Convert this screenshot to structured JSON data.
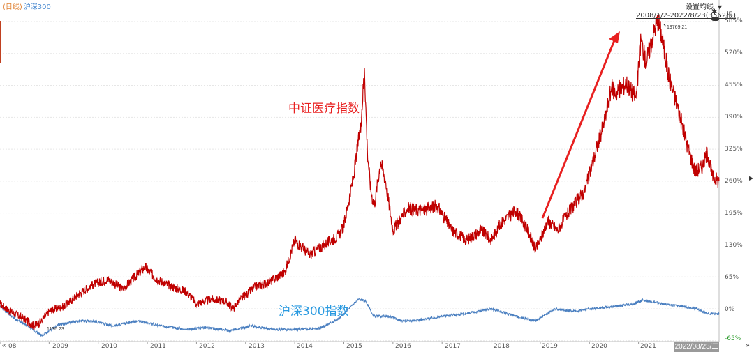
{
  "legend": {
    "item1": "(日线)",
    "item2": "沪深300"
  },
  "controls": {
    "ma_setting": "设置均线",
    "range": "2008/1/2-2022/8/23(3562根)",
    "cursor_date": "2022/08/23/二"
  },
  "annotations": {
    "medical": "中证医疗指数",
    "csi300": "沪深300指数",
    "peak_value": "19769.21",
    "low_value": "1136.23"
  },
  "colors": {
    "medical_line": "#c00000",
    "csi300_line": "#4a7fc0",
    "arrow": "#e82020",
    "grid": "#e6e6e6"
  },
  "icons": {
    "pin": "pin-icon",
    "dropdown": "dropdown-arrow-icon",
    "scroll_left": "double-chevron-left-icon",
    "scroll_right": "double-chevron-right-icon"
  },
  "chart_data": {
    "type": "line",
    "ylabel_unit": "%",
    "yticks": [
      "585%",
      "520%",
      "455%",
      "390%",
      "325%",
      "260%",
      "195%",
      "130%",
      "65%",
      "0%",
      "-65%"
    ],
    "ytick_values": [
      585,
      520,
      455,
      390,
      325,
      260,
      195,
      130,
      65,
      0,
      -65
    ],
    "ylim": [
      -68,
      600
    ],
    "xlim": [
      2008.0,
      2022.64
    ],
    "xticks": [
      "08",
      "2009",
      "2010",
      "2011",
      "2012",
      "2013",
      "2014",
      "2015",
      "2016",
      "2017",
      "2018",
      "2019",
      "2020",
      "2021",
      "2022"
    ],
    "xtick_values": [
      2008.0,
      2009.0,
      2010.0,
      2011.0,
      2012.0,
      2013.0,
      2014.0,
      2015.0,
      2016.0,
      2017.0,
      2018.0,
      2019.0,
      2020.0,
      2021.0,
      2022.0
    ],
    "grid": true,
    "series": [
      {
        "name": "中证医疗指数",
        "x": [
          2008.0,
          2008.2,
          2008.45,
          2008.7,
          2008.85,
          2009.0,
          2009.3,
          2009.6,
          2009.9,
          2010.2,
          2010.5,
          2010.8,
          2010.95,
          2011.2,
          2011.5,
          2011.8,
          2012.0,
          2012.3,
          2012.6,
          2012.75,
          2012.85,
          2013.2,
          2013.5,
          2013.8,
          2014.0,
          2014.3,
          2014.6,
          2014.9,
          2015.0,
          2015.2,
          2015.35,
          2015.42,
          2015.48,
          2015.55,
          2015.62,
          2015.75,
          2015.85,
          2016.0,
          2016.3,
          2016.6,
          2016.9,
          2017.2,
          2017.5,
          2017.8,
          2018.0,
          2018.2,
          2018.5,
          2018.75,
          2018.9,
          2019.0,
          2019.15,
          2019.35,
          2019.6,
          2019.9,
          2020.1,
          2020.3,
          2020.45,
          2020.55,
          2020.75,
          2020.95,
          2021.05,
          2021.15,
          2021.3,
          2021.4,
          2021.5,
          2021.6,
          2021.8,
          2022.0,
          2022.15,
          2022.3,
          2022.4,
          2022.5,
          2022.64
        ],
        "values": [
          10,
          -5,
          -18,
          -35,
          -25,
          -5,
          5,
          30,
          50,
          60,
          40,
          70,
          85,
          60,
          45,
          35,
          10,
          20,
          15,
          0,
          15,
          45,
          55,
          75,
          140,
          110,
          130,
          150,
          170,
          270,
          380,
          490,
          320,
          240,
          210,
          300,
          260,
          160,
          205,
          200,
          210,
          160,
          140,
          160,
          140,
          175,
          200,
          160,
          120,
          140,
          180,
          160,
          200,
          240,
          310,
          380,
          450,
          440,
          460,
          430,
          550,
          500,
          560,
          590,
          540,
          480,
          410,
          330,
          280,
          290,
          320,
          270,
          260
        ]
      },
      {
        "name": "沪深300指数",
        "x": [
          2008.0,
          2008.3,
          2008.6,
          2008.85,
          2009.2,
          2009.6,
          2009.9,
          2010.3,
          2010.8,
          2011.3,
          2011.8,
          2012.2,
          2012.7,
          2013.1,
          2013.6,
          2014.0,
          2014.5,
          2014.9,
          2015.1,
          2015.3,
          2015.45,
          2015.6,
          2015.9,
          2016.2,
          2016.6,
          2017.0,
          2017.5,
          2018.0,
          2018.5,
          2018.9,
          2019.3,
          2019.7,
          2020.0,
          2020.5,
          2020.9,
          2021.1,
          2021.5,
          2021.9,
          2022.2,
          2022.4,
          2022.64
        ],
        "values": [
          5,
          -20,
          -38,
          -55,
          -32,
          -25,
          -25,
          -35,
          -25,
          -35,
          -42,
          -38,
          -45,
          -35,
          -42,
          -42,
          -40,
          -20,
          0,
          20,
          15,
          -15,
          -15,
          -25,
          -22,
          -15,
          -10,
          0,
          -15,
          -25,
          0,
          -5,
          0,
          5,
          10,
          18,
          10,
          5,
          0,
          -10,
          -10
        ]
      }
    ]
  }
}
